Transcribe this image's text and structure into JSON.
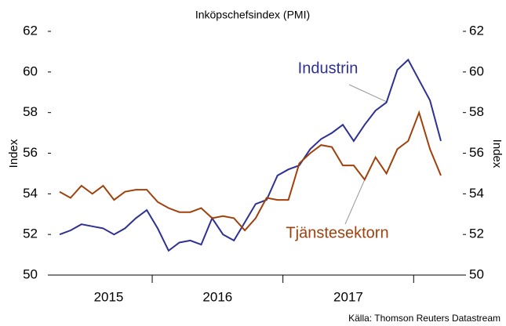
{
  "chart_data": {
    "type": "line",
    "subtitle": "Inköpschefsindex (PMI)",
    "ylabel": "Index",
    "y2label": "Index",
    "source": "Källa: Thomson Reuters Datastream",
    "categories": [
      null,
      null,
      null,
      null,
      "2015",
      null,
      null,
      null,
      null,
      null,
      null,
      null,
      null,
      null,
      "2016",
      null,
      null,
      null,
      null,
      null,
      null,
      null,
      null,
      null,
      null,
      null,
      "2017",
      null,
      null,
      null,
      null,
      null,
      null,
      null,
      null,
      null
    ],
    "series": [
      {
        "name": "Industrin",
        "color": "#2e3192",
        "values": [
          52.0,
          52.2,
          52.5,
          52.4,
          52.3,
          52.0,
          52.3,
          52.8,
          53.2,
          52.3,
          51.2,
          51.6,
          51.7,
          51.5,
          52.8,
          52.0,
          51.7,
          52.6,
          53.5,
          53.7,
          54.9,
          55.2,
          55.4,
          56.2,
          56.7,
          57.0,
          57.4,
          56.6,
          57.4,
          58.1,
          58.5,
          60.1,
          60.6,
          59.6,
          58.6,
          56.6
        ]
      },
      {
        "name": "Tjänstesektorn",
        "color": "#a0410d",
        "values": [
          54.1,
          53.8,
          54.4,
          54.0,
          54.4,
          53.7,
          54.1,
          54.2,
          54.2,
          53.6,
          53.3,
          53.1,
          53.1,
          53.3,
          52.8,
          52.9,
          52.8,
          52.2,
          52.8,
          53.8,
          53.7,
          53.7,
          55.5,
          56.0,
          56.4,
          56.3,
          55.4,
          55.4,
          54.7,
          55.8,
          55.0,
          56.2,
          56.6,
          58.0,
          56.2,
          54.9
        ]
      }
    ],
    "ylim": [
      50,
      62
    ],
    "yticks": [
      50,
      52,
      54,
      56,
      58,
      60,
      62
    ],
    "y2lim": [
      50,
      62
    ],
    "y2ticks": [
      50,
      52,
      54,
      56,
      58,
      60,
      62
    ]
  }
}
